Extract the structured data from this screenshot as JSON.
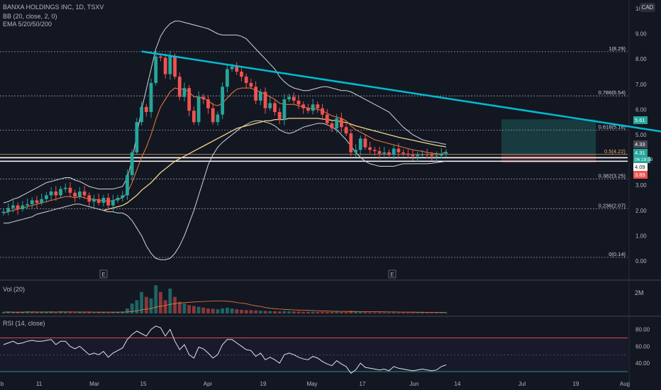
{
  "header": {
    "symbol": "BANXA HOLDINGS INC, 1D, TSXV",
    "bb": "BB (20, close, 2, 0)",
    "ema": "EMA 5/20/50/200",
    "currency": "CAD"
  },
  "vol_pane": {
    "label": "Vol (20)",
    "scale": "2M"
  },
  "rsi_pane": {
    "label": "RSI (14, close)",
    "ticks": [
      "80.00",
      "60.00",
      "40.00"
    ],
    "levels": [
      70,
      30
    ]
  },
  "price_tags": {
    "target": "5.61",
    "ema_tag": "4.33",
    "last": "4.31",
    "countdown": "06:19:50",
    "bb_low": "4.09",
    "stop": "3.89"
  },
  "colors": {
    "up": "#26a69a",
    "down": "#ef5350",
    "trendline": "#00bcd4",
    "ema_fast": "#f57c3b",
    "ema_slow": "#f2d58a",
    "bb": "#d1d4dc"
  },
  "chart_data": {
    "type": "candlestick",
    "y_axis": {
      "ticks": [
        "0.00",
        "1.00",
        "2.00",
        "3.00",
        "4.00",
        "5.00",
        "6.00",
        "7.00",
        "8.00",
        "9.00",
        "10"
      ],
      "ylim": [
        0,
        10
      ]
    },
    "x_axis": {
      "ticks": [
        "b",
        "11",
        "Mar",
        "15",
        "Apr",
        "19",
        "May",
        "17",
        "Jun",
        "14",
        "Jul",
        "19",
        "Aug"
      ]
    },
    "earnings_markers": [
      "E",
      "E"
    ],
    "fib_levels": [
      {
        "label": "1(8.29)",
        "value": 8.29
      },
      {
        "label": "0.786(6.54)",
        "value": 6.54
      },
      {
        "label": "0.618(5.18)",
        "value": 5.18
      },
      {
        "label": "0.5(4.22)",
        "value": 4.22
      },
      {
        "label": "0.382(3.25)",
        "value": 3.25
      },
      {
        "label": "0.236(2.07)",
        "value": 2.07
      },
      {
        "label": "0(0.14)",
        "value": 0.14
      }
    ],
    "support_lines": [
      4.09,
      3.95
    ],
    "trendline": {
      "from": {
        "index": 29,
        "value": 8.3
      },
      "to": {
        "index": 153,
        "value": 4.7
      }
    },
    "position": {
      "entry": 4.22,
      "target": 5.61,
      "stop": 3.89
    },
    "close": [
      1.95,
      2.1,
      2.2,
      2.05,
      2.2,
      2.25,
      2.4,
      2.3,
      2.45,
      2.6,
      2.75,
      2.6,
      2.85,
      2.9,
      2.7,
      2.55,
      2.75,
      2.6,
      2.35,
      2.45,
      2.3,
      2.5,
      2.2,
      2.4,
      2.5,
      2.6,
      3.4,
      4.3,
      5.5,
      6.1,
      5.9,
      7.05,
      8.1,
      8.05,
      7.4,
      8.1,
      7.3,
      6.5,
      6.85,
      5.95,
      5.5,
      6.5,
      6.4,
      6.05,
      5.5,
      5.8,
      6.9,
      7.6,
      7.7,
      7.5,
      7.3,
      7.05,
      6.9,
      6.35,
      6.7,
      6.05,
      6.25,
      5.9,
      5.6,
      6.4,
      6.5,
      6.35,
      6.2,
      6.05,
      5.95,
      6.2,
      6.05,
      5.8,
      5.45,
      5.25,
      5.65,
      5.3,
      5.05,
      4.3,
      4.4,
      4.85,
      4.5,
      4.4,
      4.35,
      4.25,
      4.3,
      4.2,
      4.45,
      4.3,
      4.25,
      4.2,
      4.15,
      4.2,
      4.22,
      4.2,
      4.15,
      4.17,
      4.25,
      4.31
    ],
    "ema_fast": [
      1.9,
      1.95,
      2.0,
      2.05,
      2.1,
      2.15,
      2.2,
      2.25,
      2.3,
      2.35,
      2.4,
      2.45,
      2.5,
      2.55,
      2.55,
      2.5,
      2.55,
      2.5,
      2.45,
      2.45,
      2.4,
      2.4,
      2.35,
      2.4,
      2.45,
      2.5,
      2.7,
      3.1,
      3.6,
      4.1,
      4.5,
      5.0,
      5.6,
      6.1,
      6.4,
      6.7,
      6.85,
      6.8,
      6.8,
      6.7,
      6.5,
      6.5,
      6.45,
      6.35,
      6.2,
      6.15,
      6.25,
      6.45,
      6.65,
      6.8,
      6.85,
      6.85,
      6.85,
      6.75,
      6.7,
      6.6,
      6.5,
      6.4,
      6.25,
      6.2,
      6.2,
      6.2,
      6.15,
      6.1,
      6.05,
      6.05,
      6.0,
      5.95,
      5.85,
      5.75,
      5.7,
      5.65,
      5.55,
      5.35,
      5.2,
      5.1,
      5.0,
      4.9,
      4.8,
      4.75,
      4.7,
      4.65,
      4.6,
      4.55,
      4.5,
      4.45,
      4.4,
      4.37,
      4.34,
      4.3,
      4.27,
      4.25,
      4.24,
      4.33
    ],
    "ema_slow": [
      null,
      null,
      null,
      null,
      null,
      null,
      null,
      null,
      null,
      null,
      null,
      null,
      null,
      null,
      null,
      null,
      null,
      null,
      null,
      null,
      null,
      2.0,
      2.05,
      2.1,
      2.15,
      2.2,
      2.3,
      2.45,
      2.6,
      2.8,
      2.95,
      3.1,
      3.3,
      3.5,
      3.65,
      3.8,
      3.95,
      4.05,
      4.15,
      4.25,
      4.35,
      4.45,
      4.55,
      4.65,
      4.75,
      4.85,
      4.95,
      5.05,
      5.15,
      5.25,
      5.3,
      5.35,
      5.4,
      5.45,
      5.5,
      5.55,
      5.55,
      5.6,
      5.6,
      5.6,
      5.65,
      5.65,
      5.65,
      5.65,
      5.65,
      5.65,
      5.65,
      5.62,
      5.6,
      5.57,
      5.55,
      5.52,
      5.48,
      5.42,
      5.35,
      5.3,
      5.25,
      5.2,
      5.15,
      5.1,
      5.05,
      5.0,
      4.95,
      4.9,
      4.86,
      4.82,
      4.78,
      4.74,
      4.7,
      4.66,
      4.62,
      4.58,
      4.55,
      4.52
    ],
    "bb_upper": [
      2.3,
      2.35,
      2.45,
      2.5,
      2.6,
      2.7,
      2.8,
      2.9,
      3.0,
      3.1,
      3.15,
      3.2,
      3.25,
      3.3,
      3.3,
      3.2,
      3.15,
      3.05,
      2.95,
      2.9,
      2.85,
      2.85,
      2.85,
      2.85,
      2.9,
      2.95,
      3.3,
      4.0,
      5.0,
      6.0,
      6.8,
      7.6,
      8.4,
      8.9,
      9.2,
      9.4,
      9.5,
      9.5,
      9.45,
      9.4,
      9.35,
      9.3,
      9.25,
      9.2,
      9.1,
      9.0,
      8.95,
      8.95,
      8.95,
      8.95,
      8.9,
      8.8,
      8.6,
      8.4,
      8.2,
      8.0,
      7.8,
      7.6,
      7.3,
      7.1,
      6.95,
      6.85,
      6.8,
      6.75,
      6.75,
      6.8,
      6.85,
      6.9,
      6.9,
      6.85,
      6.8,
      6.75,
      6.75,
      6.7,
      6.6,
      6.5,
      6.4,
      6.3,
      6.2,
      6.1,
      6.0,
      5.9,
      5.7,
      5.5,
      5.3,
      5.15,
      5.0,
      4.9,
      4.8,
      4.75,
      4.72,
      4.7,
      4.65,
      4.62
    ],
    "bb_lower": [
      1.5,
      1.5,
      1.55,
      1.6,
      1.65,
      1.7,
      1.75,
      1.85,
      1.9,
      1.95,
      2.0,
      2.05,
      2.1,
      2.15,
      2.2,
      2.25,
      2.25,
      2.2,
      2.15,
      2.1,
      2.05,
      2.0,
      1.95,
      1.95,
      1.9,
      1.9,
      1.8,
      1.6,
      1.3,
      1.0,
      0.6,
      0.3,
      0.1,
      0.05,
      0.05,
      0.1,
      0.3,
      0.6,
      1.0,
      1.5,
      2.0,
      2.6,
      3.2,
      3.8,
      4.2,
      4.5,
      4.7,
      4.85,
      5.0,
      5.15,
      5.3,
      5.4,
      5.5,
      5.55,
      5.55,
      5.5,
      5.45,
      5.35,
      5.2,
      5.1,
      5.05,
      5.1,
      5.2,
      5.3,
      5.35,
      5.4,
      5.45,
      5.45,
      5.4,
      5.3,
      5.2,
      5.0,
      4.8,
      4.55,
      4.3,
      4.1,
      3.95,
      3.85,
      3.8,
      3.75,
      3.75,
      3.75,
      3.75,
      3.8,
      3.85,
      3.85,
      3.85,
      3.85,
      3.85,
      3.85,
      3.87,
      3.9,
      3.92,
      3.95
    ],
    "volume": [
      0.08,
      0.1,
      0.07,
      0.06,
      0.09,
      0.12,
      0.1,
      0.07,
      0.08,
      0.1,
      0.11,
      0.06,
      0.12,
      0.1,
      0.07,
      0.05,
      0.1,
      0.06,
      0.07,
      0.05,
      0.06,
      0.08,
      0.05,
      0.07,
      0.09,
      0.11,
      0.3,
      0.6,
      0.8,
      1.3,
      1.0,
      0.9,
      1.7,
      1.3,
      0.8,
      1.5,
      1.0,
      0.7,
      0.6,
      0.5,
      0.45,
      0.4,
      0.35,
      0.3,
      0.28,
      0.25,
      0.3,
      0.35,
      0.3,
      0.25,
      0.22,
      0.2,
      0.2,
      0.18,
      0.16,
      0.15,
      0.14,
      0.13,
      0.12,
      0.14,
      0.13,
      0.12,
      0.11,
      0.1,
      0.1,
      0.11,
      0.1,
      0.1,
      0.09,
      0.1,
      0.12,
      0.09,
      0.08,
      0.15,
      0.1,
      0.09,
      0.08,
      0.07,
      0.06,
      0.06,
      0.05,
      0.05,
      0.06,
      0.05,
      0.05,
      0.04,
      0.04,
      0.04,
      0.05,
      0.04,
      0.04,
      0.05,
      0.05,
      0.04
    ],
    "rsi": [
      62,
      64,
      66,
      63,
      64,
      66,
      67,
      66,
      66,
      67,
      68,
      62,
      66,
      66,
      60,
      57,
      60,
      55,
      50,
      52,
      50,
      54,
      47,
      52,
      55,
      58,
      68,
      74,
      78,
      75,
      72,
      80,
      84,
      82,
      72,
      80,
      66,
      56,
      62,
      50,
      46,
      59,
      57,
      52,
      46,
      50,
      62,
      68,
      68,
      64,
      60,
      56,
      55,
      48,
      52,
      44,
      47,
      44,
      40,
      50,
      52,
      50,
      47,
      45,
      44,
      48,
      46,
      42,
      39,
      37,
      43,
      39,
      36,
      28,
      32,
      40,
      35,
      34,
      33,
      32,
      33,
      31,
      36,
      34,
      33,
      32,
      31,
      32,
      33,
      32,
      31,
      32,
      36,
      38
    ]
  }
}
